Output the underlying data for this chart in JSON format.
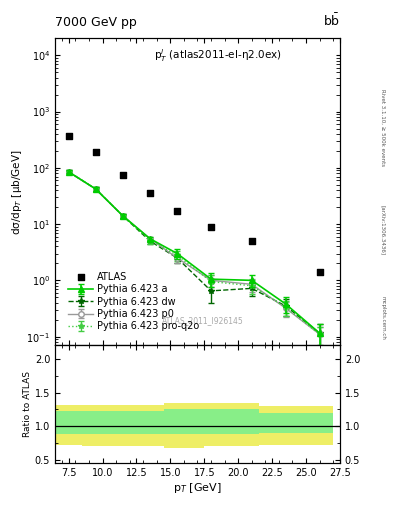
{
  "title_left": "7000 GeV pp",
  "title_right": "b$\\bar{\\text{b}}$",
  "inner_title": "p$^{l}_{T}$ (atlas2011-el-η2.0ex)",
  "ylabel_main": "dσ/dp$_{T}$ [μb/GeV]",
  "ylabel_ratio": "Ratio to ATLAS",
  "xlabel": "p$_{T}$ [GeV]",
  "watermark": "ATLAS_2011_I926145",
  "right_label1": "Rivet 3.1.10, ≥ 500k events",
  "right_label2": "[arXiv:1306.3436]",
  "right_label3": "mcplots.cern.ch",
  "atlas_x": [
    7.5,
    9.5,
    11.5,
    13.5,
    15.5,
    18.0,
    21.0,
    26.0
  ],
  "atlas_y": [
    370,
    190,
    75,
    35,
    17,
    9.0,
    5.0,
    1.4
  ],
  "pythia_a_x": [
    7.5,
    9.5,
    11.5,
    13.5,
    15.5,
    18.0,
    21.0,
    23.5,
    26.0
  ],
  "pythia_a_y": [
    85,
    42,
    14,
    5.5,
    3.0,
    1.05,
    1.0,
    0.38,
    0.115
  ],
  "pythia_a_yerr": [
    5,
    3,
    1,
    0.5,
    0.6,
    0.3,
    0.25,
    0.12,
    0.05
  ],
  "pythia_dw_x": [
    7.5,
    9.5,
    11.5,
    13.5,
    15.5,
    18.0,
    21.0,
    23.5,
    26.0
  ],
  "pythia_dw_y": [
    85,
    42,
    14,
    5.0,
    2.5,
    0.65,
    0.72,
    0.35,
    0.115
  ],
  "pythia_dw_yerr": [
    5,
    3,
    1,
    0.5,
    0.5,
    0.25,
    0.2,
    0.12,
    0.05
  ],
  "pythia_p0_x": [
    7.5,
    9.5,
    11.5,
    13.5,
    15.5,
    18.0,
    21.0,
    23.5,
    26.0
  ],
  "pythia_p0_y": [
    85,
    42,
    14,
    5.5,
    2.5,
    1.0,
    0.85,
    0.32,
    0.11
  ],
  "pythia_p0_yerr": [
    5,
    3,
    1,
    0.5,
    0.5,
    0.25,
    0.22,
    0.1,
    0.04
  ],
  "pythia_proq2o_x": [
    7.5,
    9.5,
    11.5,
    13.5,
    15.5,
    18.0,
    21.0,
    23.5,
    26.0
  ],
  "pythia_proq2o_y": [
    85,
    42,
    14,
    5.0,
    2.8,
    0.95,
    0.8,
    0.33,
    0.11
  ],
  "pythia_proq2o_yerr": [
    5,
    3,
    1,
    0.5,
    0.55,
    0.28,
    0.22,
    0.1,
    0.04
  ],
  "ratio_x_edges": [
    6.5,
    8.5,
    10.5,
    12.5,
    14.5,
    16.5,
    17.5,
    19.5,
    21.5,
    22.5,
    27.0
  ],
  "ratio_green_upper": [
    1.22,
    1.22,
    1.22,
    1.22,
    1.25,
    1.25,
    1.25,
    1.25,
    1.2,
    1.2
  ],
  "ratio_green_lower": [
    0.88,
    0.88,
    0.88,
    0.88,
    0.88,
    0.88,
    0.88,
    0.88,
    0.9,
    0.9
  ],
  "ratio_yellow_upper": [
    1.32,
    1.32,
    1.32,
    1.32,
    1.35,
    1.35,
    1.35,
    1.35,
    1.3,
    1.3
  ],
  "ratio_yellow_lower": [
    0.72,
    0.7,
    0.7,
    0.7,
    0.68,
    0.68,
    0.7,
    0.7,
    0.72,
    0.72
  ],
  "color_pythia_a": "#00cc00",
  "color_pythia_dw": "#006600",
  "color_pythia_p0": "#999999",
  "color_pythia_proq2o": "#44cc44",
  "color_green_band": "#88ee88",
  "color_yellow_band": "#eeee66",
  "xlim": [
    6.5,
    27.5
  ],
  "ylim_main": [
    0.07,
    20000
  ],
  "ylim_ratio": [
    0.45,
    2.2
  ],
  "legend_fontsize": 7,
  "title_fontsize": 9
}
